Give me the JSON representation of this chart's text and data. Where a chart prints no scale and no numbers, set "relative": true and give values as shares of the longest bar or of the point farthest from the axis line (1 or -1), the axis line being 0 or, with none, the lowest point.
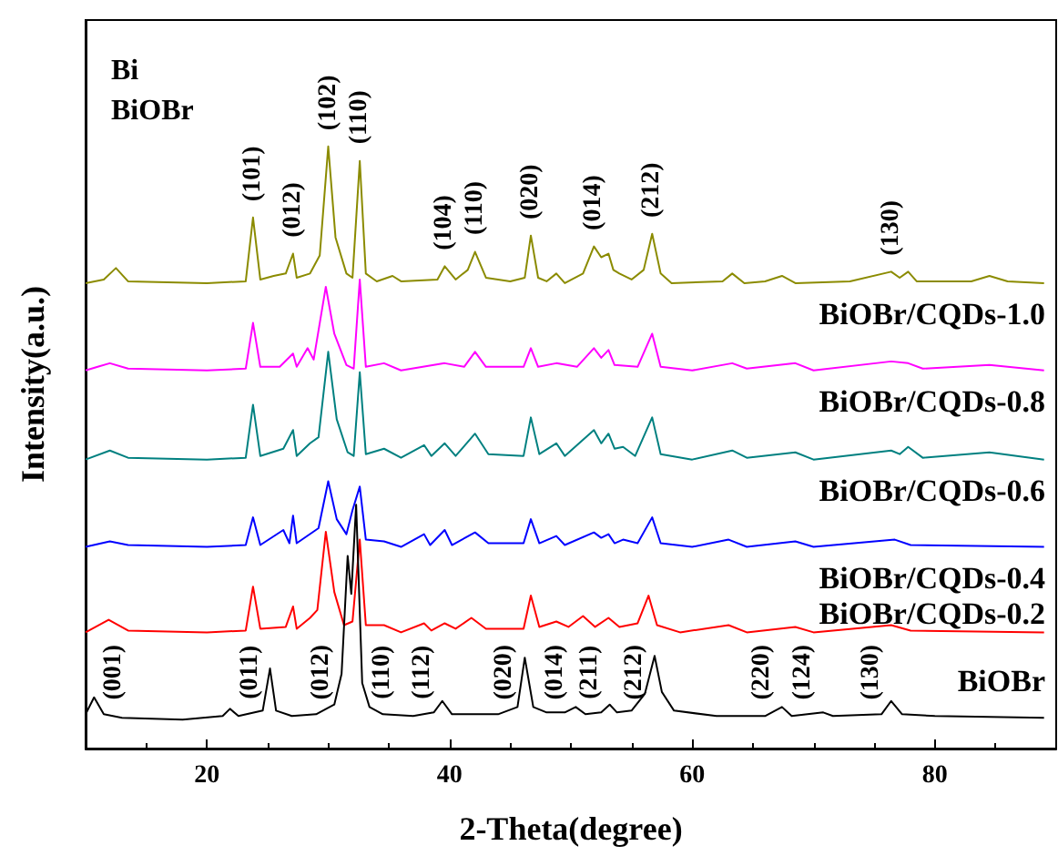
{
  "chart_data": {
    "type": "line",
    "xlabel": "2-Theta(degree)",
    "ylabel": "Intensity(a.u.)",
    "relative": true,
    "xlim": [
      10,
      90
    ],
    "xticks": [
      20,
      40,
      60,
      80
    ],
    "marker": "none",
    "line_style": "solid",
    "annotations": [
      "Bi",
      "BiOBr",
      {
        "text": "(101)",
        "x": 23.8,
        "y": 0.882
      },
      {
        "text": "(012)",
        "x": 27.1,
        "y": 0.822
      },
      {
        "text": "(102)",
        "x": 30.0,
        "y": 1
      },
      {
        "text": "(110)",
        "x": 32.6,
        "y": 0.976
      },
      {
        "text": "(104)",
        "x": 39.6,
        "y": 0.801
      },
      {
        "text": "(110)",
        "x": 42.1,
        "y": 0.825
      },
      {
        "text": "(020)",
        "x": 46.7,
        "y": 0.852
      },
      {
        "text": "(014)",
        "x": 51.9,
        "y": 0.834
      },
      {
        "text": "(212)",
        "x": 56.7,
        "y": 0.855
      },
      {
        "text": "(130)",
        "x": 76.4,
        "y": 0.792
      },
      {
        "text": "(001)",
        "x": 10.7,
        "y": 0.085
      },
      {
        "text": "(011)",
        "x": 25.2,
        "y": 0.133
      },
      {
        "text": "(012)",
        "x": 31.1,
        "y": 0.124
      },
      {
        "text": "(110)",
        "x": 32.8,
        "y": 0.109
      },
      {
        "text": "(112)",
        "x": 39.4,
        "y": 0.079
      },
      {
        "text": "(020)",
        "x": 46.2,
        "y": 0.151
      },
      {
        "text": "(014)",
        "x": 50.4,
        "y": 0.069
      },
      {
        "text": "(211)",
        "x": 53.2,
        "y": 0.073
      },
      {
        "text": "(212)",
        "x": 56.9,
        "y": 0.154
      },
      {
        "text": "(220)",
        "x": 67.4,
        "y": 0.069
      },
      {
        "text": "(124)",
        "x": 70.8,
        "y": 0.06
      },
      {
        "text": "(130)",
        "x": 76.4,
        "y": 0.079
      }
    ],
    "series": [
      {
        "name": "BiOBr/CQDs-1.0",
        "color": "#8b8b00",
        "x": [
          10,
          11.5,
          12.5,
          13.5,
          20,
          23.2,
          23.8,
          24.4,
          25.5,
          26.5,
          27.1,
          27.4,
          28.5,
          29.3,
          30.0,
          30.6,
          31.5,
          32.0,
          32.6,
          33.1,
          34,
          35.3,
          36,
          39,
          39.6,
          40.5,
          41.5,
          42.1,
          43,
          45,
          46.2,
          46.7,
          47.3,
          48,
          48.8,
          49.5,
          51,
          51.9,
          52.5,
          53.1,
          53.5,
          54,
          55,
          56,
          56.7,
          57.4,
          58.3,
          62.5,
          63.3,
          64.3,
          66,
          67.4,
          68.5,
          73,
          76.4,
          77.1,
          77.8,
          78.5,
          83,
          84.5,
          86,
          89
        ],
        "values": [
          0.773,
          0.779,
          0.798,
          0.776,
          0.773,
          0.776,
          0.882,
          0.779,
          0.785,
          0.789,
          0.822,
          0.782,
          0.789,
          0.819,
          1,
          0.849,
          0.789,
          0.782,
          0.976,
          0.789,
          0.776,
          0.785,
          0.776,
          0.779,
          0.801,
          0.779,
          0.795,
          0.825,
          0.782,
          0.776,
          0.782,
          0.852,
          0.782,
          0.776,
          0.789,
          0.773,
          0.789,
          0.834,
          0.816,
          0.822,
          0.795,
          0.789,
          0.779,
          0.795,
          0.855,
          0.789,
          0.773,
          0.776,
          0.789,
          0.773,
          0.776,
          0.785,
          0.773,
          0.776,
          0.792,
          0.782,
          0.792,
          0.776,
          0.776,
          0.785,
          0.776,
          0.773
        ]
      },
      {
        "name": "BiOBr/CQDs-0.8",
        "color": "#ff00ff",
        "x": [
          10,
          11,
          12,
          13.5,
          20,
          23.2,
          23.8,
          24.4,
          26,
          27.1,
          27.4,
          28.3,
          28.8,
          29.8,
          30.5,
          31.5,
          32.1,
          32.6,
          33.1,
          34.6,
          36,
          39.6,
          41.2,
          42.1,
          43,
          46.1,
          46.7,
          47.3,
          48.8,
          50.5,
          51.9,
          52.5,
          53.1,
          53.6,
          55.5,
          56.7,
          57.4,
          60,
          63.3,
          64.5,
          68.5,
          70,
          76.4,
          77.8,
          79,
          84.5,
          89
        ],
        "values": [
          0.628,
          0.634,
          0.64,
          0.631,
          0.628,
          0.631,
          0.707,
          0.634,
          0.634,
          0.656,
          0.634,
          0.665,
          0.646,
          0.767,
          0.689,
          0.637,
          0.631,
          0.779,
          0.634,
          0.64,
          0.628,
          0.64,
          0.634,
          0.659,
          0.634,
          0.634,
          0.665,
          0.634,
          0.64,
          0.634,
          0.665,
          0.649,
          0.662,
          0.637,
          0.634,
          0.689,
          0.634,
          0.628,
          0.64,
          0.631,
          0.64,
          0.628,
          0.643,
          0.64,
          0.631,
          0.637,
          0.628
        ]
      },
      {
        "name": "BiOBr/CQDs-0.6",
        "color": "#008080",
        "x": [
          10,
          12,
          13.5,
          20,
          23.2,
          23.8,
          24.4,
          26.3,
          27.1,
          27.4,
          28.5,
          29.2,
          30.0,
          30.7,
          31.6,
          32.1,
          32.6,
          33.1,
          34.6,
          36,
          37.9,
          38.5,
          39.6,
          40.5,
          42.1,
          43.2,
          46.1,
          46.7,
          47.4,
          48.8,
          49.5,
          51.9,
          52.5,
          53.1,
          53.6,
          54.3,
          55.3,
          56.7,
          57.4,
          60,
          63.3,
          64.5,
          68.5,
          70,
          76.4,
          77.1,
          77.8,
          79,
          84.5,
          89
        ],
        "values": [
          0.48,
          0.495,
          0.483,
          0.48,
          0.483,
          0.571,
          0.486,
          0.498,
          0.529,
          0.486,
          0.507,
          0.517,
          0.659,
          0.547,
          0.492,
          0.486,
          0.625,
          0.489,
          0.498,
          0.483,
          0.504,
          0.486,
          0.507,
          0.486,
          0.523,
          0.489,
          0.486,
          0.55,
          0.489,
          0.507,
          0.486,
          0.529,
          0.507,
          0.523,
          0.498,
          0.501,
          0.486,
          0.55,
          0.489,
          0.48,
          0.495,
          0.483,
          0.492,
          0.48,
          0.495,
          0.489,
          0.501,
          0.483,
          0.492,
          0.48
        ]
      },
      {
        "name": "BiOBr/CQDs-0.4",
        "color": "#0000ff",
        "x": [
          10,
          12,
          13.5,
          20,
          23.2,
          23.8,
          24.4,
          26.3,
          26.8,
          27.1,
          27.4,
          29.2,
          30.0,
          30.7,
          31.5,
          32.0,
          32.6,
          33.1,
          34.6,
          36,
          37.9,
          38.4,
          39.6,
          40.2,
          42.1,
          43.2,
          46.1,
          46.7,
          47.4,
          48.8,
          49.5,
          51.9,
          52.5,
          53.1,
          53.6,
          54.3,
          55.5,
          56.7,
          57.4,
          60,
          63,
          64.5,
          68.5,
          70,
          76.7,
          78,
          89
        ],
        "values": [
          0.335,
          0.344,
          0.338,
          0.335,
          0.338,
          0.384,
          0.338,
          0.363,
          0.341,
          0.387,
          0.341,
          0.366,
          0.444,
          0.381,
          0.356,
          0.396,
          0.435,
          0.347,
          0.344,
          0.335,
          0.356,
          0.338,
          0.363,
          0.338,
          0.359,
          0.341,
          0.341,
          0.381,
          0.341,
          0.353,
          0.338,
          0.359,
          0.35,
          0.356,
          0.341,
          0.347,
          0.341,
          0.384,
          0.341,
          0.335,
          0.347,
          0.335,
          0.344,
          0.335,
          0.347,
          0.338,
          0.335
        ]
      },
      {
        "name": "BiOBr/CQDs-0.2",
        "color": "#ff0000",
        "x": [
          10,
          11.9,
          13.5,
          20,
          23.2,
          23.8,
          24.4,
          26.5,
          27.1,
          27.4,
          28.5,
          29.1,
          29.8,
          30.5,
          31.3,
          32.0,
          32.6,
          33.1,
          34.6,
          36,
          37.9,
          38.5,
          39.6,
          40.5,
          41.8,
          43,
          46.1,
          46.7,
          47.4,
          48.8,
          49.8,
          51.0,
          52,
          53.1,
          54,
          55.5,
          56.4,
          57.1,
          59,
          63,
          64.5,
          68.5,
          70,
          76.4,
          78,
          89
        ],
        "values": [
          0.193,
          0.214,
          0.196,
          0.193,
          0.196,
          0.269,
          0.199,
          0.202,
          0.236,
          0.199,
          0.217,
          0.23,
          0.36,
          0.26,
          0.205,
          0.211,
          0.347,
          0.205,
          0.205,
          0.193,
          0.208,
          0.196,
          0.208,
          0.199,
          0.217,
          0.199,
          0.199,
          0.254,
          0.202,
          0.211,
          0.202,
          0.22,
          0.202,
          0.217,
          0.202,
          0.208,
          0.254,
          0.205,
          0.193,
          0.205,
          0.193,
          0.202,
          0.193,
          0.205,
          0.196,
          0.193
        ]
      },
      {
        "name": "BiOBr",
        "color": "#000000",
        "x": [
          10,
          10.7,
          11.5,
          13,
          18,
          21.3,
          21.9,
          22.6,
          24.6,
          25.2,
          25.7,
          27,
          29,
          30.5,
          31.1,
          31.6,
          31.9,
          32.3,
          32.8,
          33.4,
          34.5,
          37,
          38.7,
          39.4,
          40.2,
          44,
          45.6,
          46.2,
          46.9,
          48,
          49.5,
          50.4,
          51.2,
          52.5,
          53.2,
          53.8,
          55,
          56.1,
          56.9,
          57.5,
          58.5,
          62,
          66,
          67.4,
          68.2,
          70.8,
          71.6,
          75.6,
          76.4,
          77.3,
          80,
          89
        ],
        "values": [
          0.057,
          0.085,
          0.057,
          0.051,
          0.048,
          0.054,
          0.066,
          0.054,
          0.063,
          0.133,
          0.063,
          0.054,
          0.057,
          0.073,
          0.124,
          0.32,
          0.257,
          0.405,
          0.109,
          0.069,
          0.057,
          0.054,
          0.06,
          0.079,
          0.057,
          0.057,
          0.069,
          0.151,
          0.069,
          0.06,
          0.06,
          0.069,
          0.057,
          0.06,
          0.073,
          0.06,
          0.063,
          0.091,
          0.154,
          0.094,
          0.063,
          0.054,
          0.054,
          0.069,
          0.054,
          0.06,
          0.054,
          0.057,
          0.079,
          0.057,
          0.054,
          0.051
        ]
      }
    ]
  }
}
